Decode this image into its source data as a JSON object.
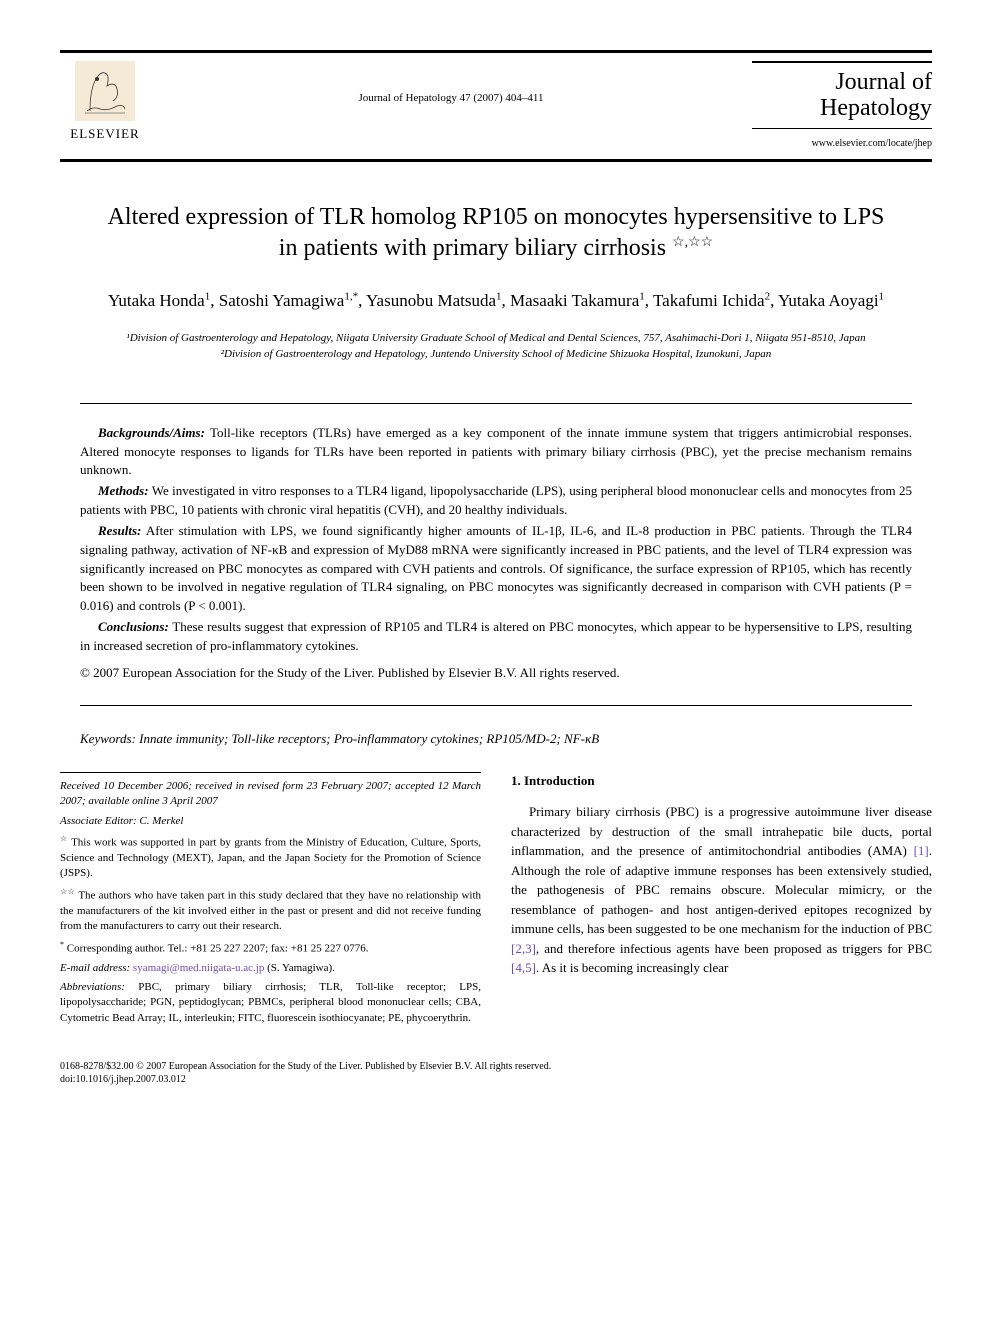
{
  "header": {
    "publisher_name": "ELSEVIER",
    "journal_ref": "Journal of Hepatology 47 (2007) 404–411",
    "journal_title_line1": "Journal of",
    "journal_title_line2": "Hepatology",
    "journal_url": "www.elsevier.com/locate/jhep"
  },
  "title": "Altered expression of TLR homolog RP105 on monocytes hypersensitive to LPS in patients with primary biliary cirrhosis",
  "title_marks": "☆,☆☆",
  "authors_html": "Yutaka Honda<sup>1</sup>, Satoshi Yamagiwa<sup>1,*</sup>, Yasunobu Matsuda<sup>1</sup>, Masaaki Takamura<sup>1</sup>, Takafumi Ichida<sup>2</sup>, Yutaka Aoyagi<sup>1</sup>",
  "affiliations": [
    "¹Division of Gastroenterology and Hepatology, Niigata University Graduate School of Medical and Dental Sciences, 757, Asahimachi-Dori 1, Niigata 951-8510, Japan",
    "²Division of Gastroenterology and Hepatology, Juntendo University School of Medicine Shizuoka Hospital, Izunokuni, Japan"
  ],
  "abstract": {
    "background_label": "Backgrounds/Aims:",
    "background": " Toll-like receptors (TLRs) have emerged as a key component of the innate immune system that triggers antimicrobial responses. Altered monocyte responses to ligands for TLRs have been reported in patients with primary biliary cirrhosis (PBC), yet the precise mechanism remains unknown.",
    "methods_label": "Methods:",
    "methods": " We investigated in vitro responses to a TLR4 ligand, lipopolysaccharide (LPS), using peripheral blood mononuclear cells and monocytes from 25 patients with PBC, 10 patients with chronic viral hepatitis (CVH), and 20 healthy individuals.",
    "results_label": "Results:",
    "results": " After stimulation with LPS, we found significantly higher amounts of IL-1β, IL-6, and IL-8 production in PBC patients. Through the TLR4 signaling pathway, activation of NF-κB and expression of MyD88 mRNA were significantly increased in PBC patients, and the level of TLR4 expression was significantly increased on PBC monocytes as compared with CVH patients and controls. Of significance, the surface expression of RP105, which has recently been shown to be involved in negative regulation of TLR4 signaling, on PBC monocytes was significantly decreased in comparison with CVH patients (P = 0.016) and controls (P < 0.001).",
    "conclusions_label": "Conclusions:",
    "conclusions": " These results suggest that expression of RP105 and TLR4 is altered on PBC monocytes, which appear to be hypersensitive to LPS, resulting in increased secretion of pro-inflammatory cytokines.",
    "copyright": "© 2007 European Association for the Study of the Liver. Published by Elsevier B.V. All rights reserved."
  },
  "keywords_label": "Keywords:",
  "keywords": " Innate immunity; Toll-like receptors; Pro-inflammatory cytokines; RP105/MD-2; NF-κB",
  "left_column": {
    "history": "Received 10 December 2006; received in revised form 23 February 2007; accepted 12 March 2007; available online 3 April 2007",
    "editor": "Associate Editor: C. Merkel",
    "fn1_mark": "☆",
    "fn1": " This work was supported in part by grants from the Ministry of Education, Culture, Sports, Science and Technology (MEXT), Japan, and the Japan Society for the Promotion of Science (JSPS).",
    "fn2_mark": "☆☆",
    "fn2": " The authors who have taken part in this study declared that they have no relationship with the manufacturers of the kit involved either in the past or present and did not receive funding from the manufacturers to carry out their research.",
    "corr_mark": "*",
    "corr": " Corresponding author. Tel.: +81 25 227 2207; fax: +81 25 227 0776.",
    "email_label": "E-mail address: ",
    "email": "syamagi@med.niigata-u.ac.jp",
    "email_suffix": " (S. Yamagiwa).",
    "abbrev_label": "Abbreviations:",
    "abbrev": " PBC, primary biliary cirrhosis; TLR, Toll-like receptor; LPS, lipopolysaccharide; PGN, peptidoglycan; PBMCs, peripheral blood mononuclear cells; CBA, Cytometric Bead Array; IL, interleukin; FITC, fluorescein isothiocyanate; PE, phycoerythrin."
  },
  "right_column": {
    "heading": "1. Introduction",
    "body_pre": "Primary biliary cirrhosis (PBC) is a progressive autoimmune liver disease characterized by destruction of the small intrahepatic bile ducts, portal inflammation, and the presence of antimitochondrial antibodies (AMA) ",
    "ref1": "[1]",
    "body_mid1": ". Although the role of adaptive immune responses has been extensively studied, the pathogenesis of PBC remains obscure. Molecular mimicry, or the resemblance of pathogen- and host antigen-derived epitopes recognized by immune cells, has been suggested to be one mechanism for the induction of PBC ",
    "ref2": "[2,3]",
    "body_mid2": ", and therefore infectious agents have been proposed as triggers for PBC ",
    "ref3": "[4,5]",
    "body_end": ". As it is becoming increasingly clear"
  },
  "footer": {
    "line1": "0168-8278/$32.00 © 2007 European Association for the Study of the Liver. Published by Elsevier B.V. All rights reserved.",
    "line2": "doi:10.1016/j.jhep.2007.03.012"
  },
  "colors": {
    "text": "#000000",
    "link": "#6a4fb0",
    "background": "#ffffff",
    "logo_orange": "#ff8a00",
    "logo_bg": "#f5ead6"
  }
}
